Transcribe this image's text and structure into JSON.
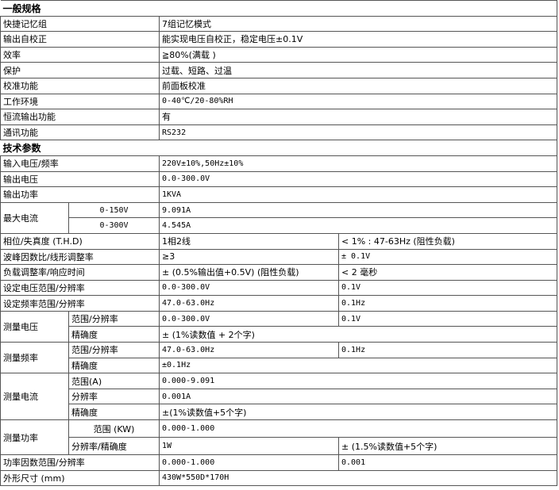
{
  "general": {
    "title": "一般规格",
    "rows": [
      {
        "label": "快捷记忆组",
        "value": "7组记忆模式"
      },
      {
        "label": "输出自校正",
        "value": "能实现电压自校正，稳定电压±0.1V"
      },
      {
        "label": "效率",
        "value": "≧80%(满载 )"
      },
      {
        "label": "保护",
        "value": "过载、短路、过温"
      },
      {
        "label": "校准功能",
        "value": "前面板校准"
      },
      {
        "label": "工作环境",
        "value": "0-40℃/20-80%RH"
      },
      {
        "label": "恒流输出功能",
        "value": "有"
      },
      {
        "label": "通讯功能",
        "value": "RS232"
      }
    ]
  },
  "tech": {
    "title": "技术参数",
    "input": {
      "label": "输入电压/频率",
      "value": "220V±10%,50Hz±10%"
    },
    "out_voltage": {
      "label": "输出电压",
      "value": "0.0-300.0V"
    },
    "out_power": {
      "label": "输出功率",
      "value": "1KVA"
    },
    "max_current": {
      "label": "最大电流",
      "r1": "0-150V",
      "v1": "9.091A",
      "r2": "0-300V",
      "v2": "4.545A"
    },
    "phase": {
      "label": "相位/失真度 (T.H.D)",
      "v1": "1相2线",
      "v2": "< 1% : 47-63Hz (阻性负载)"
    },
    "crest": {
      "label": "波峰因数比/线形调整率",
      "v1": "≥3",
      "v2": "± 0.1V"
    },
    "load": {
      "label": "负载调整率/响应时间",
      "v1": "± (0.5%输出值+0.5V) (阻性负载)",
      "v2": "< 2 毫秒"
    },
    "set_voltage": {
      "label": "设定电压范围/分辨率",
      "v1": "0.0-300.0V",
      "v2": "0.1V"
    },
    "set_freq": {
      "label": "设定频率范围/分辨率",
      "v1": "47.0-63.0Hz",
      "v2": "0.1Hz"
    },
    "meas_voltage": {
      "label": "测量电压",
      "s1": "范围/分辨率",
      "v1": "0.0-300.0V",
      "v1b": "0.1V",
      "s2": "精确度",
      "v2": "± (1%读数值 + 2个字)"
    },
    "meas_freq": {
      "label": "测量频率",
      "s1": "范围/分辨率",
      "v1": "47.0-63.0Hz",
      "v1b": "0.1Hz",
      "s2": "精确度",
      "v2": "±0.1Hz"
    },
    "meas_current": {
      "label": "测量电流",
      "s1": "范围(A)",
      "v1": "0.000-9.091",
      "s2": "分辨率",
      "v2": "0.001A",
      "s3": "精确度",
      "v3": "±(1%读数值+5个字)"
    },
    "meas_power": {
      "label": "测量功率",
      "s1": "范围 (KW)",
      "v1": "0.000-1.000",
      "s2": "分辨率/精确度",
      "v2": "1W",
      "v2b": "± (1.5%读数值+5个字)"
    },
    "pf": {
      "label": "功率因数范围/分辨率",
      "v1": "0.000-1.000",
      "v2": "0.001"
    },
    "size": {
      "label": "外形尺寸 (mm)",
      "value": "430W*550D*170H"
    }
  }
}
